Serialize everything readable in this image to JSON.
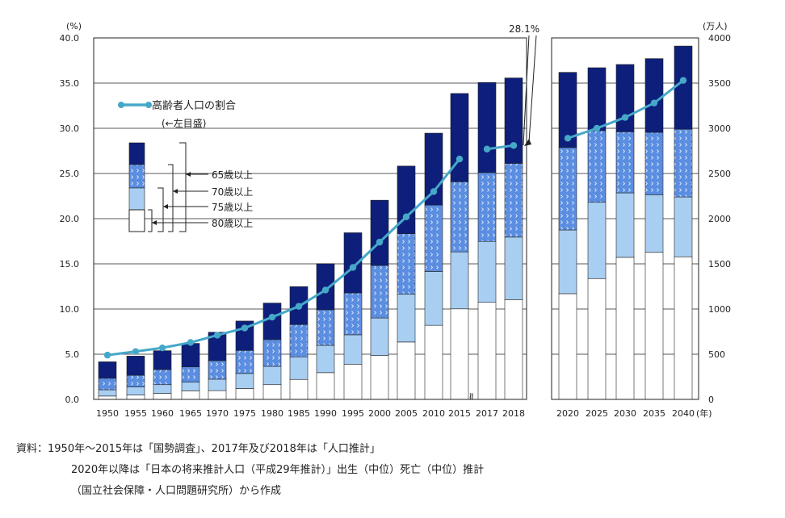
{
  "chart_data": {
    "type": "bar",
    "subtype": "stacked bar with line (dual axis)",
    "left_axis": {
      "unit": "(%)",
      "ylim": [
        0,
        40
      ],
      "ticks": [
        "0.0",
        "5.0",
        "10.0",
        "15.0",
        "20.0",
        "25.0",
        "30.0",
        "35.0",
        "40.0"
      ]
    },
    "right_axis": {
      "unit": "(万人)",
      "ylim": [
        0,
        4000
      ],
      "ticks": [
        "0",
        "500",
        "1000",
        "1500",
        "2000",
        "2500",
        "3000",
        "3500",
        "4000"
      ]
    },
    "x_unit": "(年)",
    "categories": [
      "1950",
      "1955",
      "1960",
      "1965",
      "1970",
      "1975",
      "1980",
      "1985",
      "1990",
      "1995",
      "2000",
      "2005",
      "2010",
      "2015",
      "2017",
      "2018",
      "2020",
      "2025",
      "2030",
      "2035",
      "2040"
    ],
    "bar_segments_legend": [
      "65歳以上",
      "70歳以上",
      "75歳以上",
      "80歳以上"
    ],
    "series": [
      {
        "name": "80歳以上",
        "axis": "right",
        "color": "#ffffff",
        "values": [
          37,
          48,
          67,
          95,
          97,
          121,
          163,
          221,
          296,
          390,
          486,
          635,
          820,
          1002,
          1074,
          1104,
          1170,
          1337,
          1572,
          1627,
          1578
        ]
      },
      {
        "name": "75-79歳",
        "axis": "right",
        "color": "#a8cff2",
        "values": [
          70,
          90,
          96,
          95,
          127,
          166,
          203,
          250,
          302,
          325,
          415,
          530,
          595,
          630,
          674,
          692,
          705,
          844,
          713,
          638,
          662
        ]
      },
      {
        "name": "70-74歳",
        "axis": "right",
        "color": "#5b8de0",
        "pattern": "dotted",
        "values": [
          127,
          128,
          167,
          171,
          205,
          255,
          296,
          357,
          394,
          463,
          581,
          668,
          735,
          776,
          762,
          816,
          912,
          793,
          676,
          690,
          750
        ]
      },
      {
        "name": "65-69歳",
        "axis": "right",
        "color": "#0d1f7a",
        "values": [
          182,
          213,
          209,
          259,
          314,
          325,
          404,
          420,
          510,
          666,
          722,
          749,
          796,
          977,
          997,
          945,
          832,
          696,
          745,
          816,
          920
        ]
      },
      {
        "name": "高齢者人口の割合",
        "type": "line",
        "axis": "left",
        "color": "#46a8c9",
        "values": [
          4.9,
          5.3,
          5.7,
          6.3,
          7.1,
          7.9,
          9.1,
          10.3,
          12.1,
          14.6,
          17.4,
          20.2,
          23.0,
          26.6,
          27.7,
          28.1,
          28.9,
          30.0,
          31.2,
          32.8,
          35.3
        ]
      }
    ],
    "line_legend": "高齢者人口の割合",
    "line_legend_note": "(←左目盛)",
    "annotation": "28.1%",
    "break_mark": "≈"
  },
  "source": {
    "line1": "資料：1950年～2015年は「国勢調査」、2017年及び2018年は「人口推計」",
    "line2": "2020年以降は「日本の将来推計人口（平成29年推計）」出生（中位）死亡（中位）推計",
    "line3": "（国立社会保障・人口問題研究所）から作成"
  }
}
